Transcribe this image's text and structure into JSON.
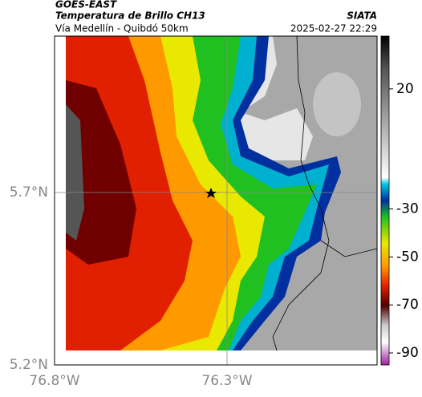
{
  "header": {
    "source": "GOES-EAST",
    "product": "Temperatura de Brillo CH13",
    "route": "Vía Medellín - Quibdó 50km",
    "agency": "SIATA",
    "datetime": "2025-02-27 22:29"
  },
  "map": {
    "lat_labels": [
      "5.7°N",
      "5.2°N"
    ],
    "lon_labels": [
      "76.8°W",
      "76.3°W"
    ]
  },
  "colorbar": {
    "lim": [
      -95,
      42
    ],
    "ticks": [
      20,
      -30,
      -50,
      -70,
      -90
    ]
  }
}
